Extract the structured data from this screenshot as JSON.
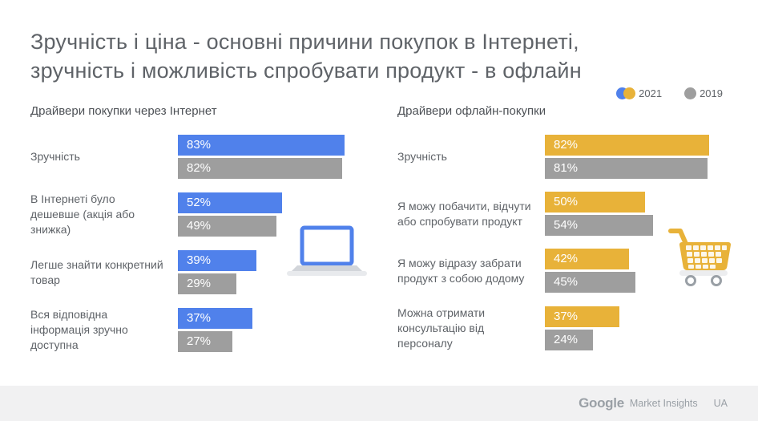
{
  "page_title": {
    "line1": "Зручність і ціна - основні причини покупок в Інтернеті,",
    "line2": "зручність і можливість спробувати продукт - в офлайн"
  },
  "legend": {
    "items": [
      {
        "label": "2021"
      },
      {
        "label": "2019"
      }
    ]
  },
  "colors": {
    "online_2021": "#5081EB",
    "offline_2021": "#E8B239",
    "series_2019": "#9E9E9E",
    "text_gray": "#5f6368",
    "footer_band": "#F1F1F2"
  },
  "icons": {
    "left": "laptop-icon",
    "right": "shopping-cart-icon"
  },
  "chart_data": [
    {
      "type": "bar",
      "orientation": "horizontal",
      "title": "Драйвери покупки через Інтернет",
      "categories": [
        "Зручність",
        "В Інтернеті було дешевше (акція або знижка)",
        "Легше знайти конкретний товар",
        "Вся відповідна інформація зручно доступна"
      ],
      "series": [
        {
          "name": "2021",
          "color": "#5081EB",
          "values": [
            83,
            52,
            39,
            37
          ]
        },
        {
          "name": "2019",
          "color": "#9E9E9E",
          "values": [
            82,
            49,
            29,
            27
          ]
        }
      ],
      "value_suffix": "%",
      "xlim": [
        0,
        100
      ],
      "legend_position": "top-right",
      "grid": false
    },
    {
      "type": "bar",
      "orientation": "horizontal",
      "title": "Драйвери офлайн-покупки",
      "categories": [
        "Зручність",
        "Я можу побачити, відчути або спробувати продукт",
        "Я можу відразу забрати продукт  з собою додому",
        "Можна отримати консультацію від персоналу"
      ],
      "series": [
        {
          "name": "2021",
          "color": "#E8B239",
          "values": [
            82,
            50,
            42,
            37
          ]
        },
        {
          "name": "2019",
          "color": "#9E9E9E",
          "values": [
            81,
            54,
            45,
            24
          ]
        }
      ],
      "value_suffix": "%",
      "xlim": [
        0,
        100
      ],
      "legend_position": "top-right",
      "grid": false
    }
  ],
  "footer": {
    "brand": "Google",
    "product": "Market Insights",
    "region": "UA"
  }
}
